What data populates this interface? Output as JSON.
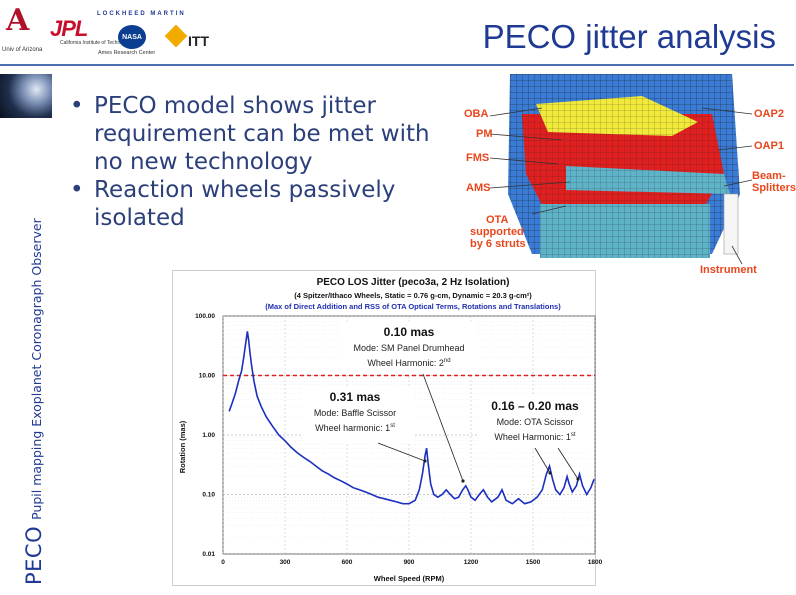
{
  "header": {
    "logos": {
      "ua_mark": "A",
      "ua_text": "Univ of Arizona",
      "jpl": "JPL",
      "jpl_sub": "California Institute of Technology",
      "lm": "LOCKHEED MARTIN",
      "nasa": "NASA",
      "ames": "Ames Research Center",
      "itt": "ITT"
    },
    "title": "PECO jitter analysis"
  },
  "sidebar": {
    "big": "PECO",
    "small": "Pupil mapping Exoplanet Coronagraph Observer"
  },
  "bullets": [
    "PECO model shows jitter requirement can be met with no new technology",
    "Reaction wheels passively isolated"
  ],
  "telescope": {
    "labels": {
      "oba": "OBA",
      "pm": "PM",
      "fms": "FMS",
      "ams": "AMS",
      "ota": "OTA",
      "ota2": "supported",
      "ota3": "by 6 struts",
      "oap2": "OAP2",
      "oap1": "OAP1",
      "beam": "Beam-",
      "beam2": "Splitters",
      "instrument": "Instrument"
    },
    "colors": {
      "label": "#e8461c",
      "red": "#e02020",
      "yellow": "#f2ea3a",
      "blue": "#3a7bd5",
      "teal": "#5fb3c9"
    }
  },
  "chart_data": {
    "type": "line",
    "title": "PECO LOS Jitter (peco3a, 2 Hz Isolation)",
    "subtitle1": "(4 Spitzer/Ithaco Wheels, Static = 0.76 g-cm, Dynamic = 20.3 g-cm²)",
    "subtitle2": "(Max of Direct Addition and RSS of OTA Optical Terms, Rotations and Translations)",
    "xlabel": "Wheel Speed (RPM)",
    "ylabel": "Rotation (mas)",
    "xlim": [
      0,
      1800
    ],
    "ylim": [
      0.01,
      100
    ],
    "yscale": "log",
    "x_ticks": [
      "0",
      "300",
      "600",
      "900",
      "1200",
      "1500",
      "1800"
    ],
    "y_ticks": [
      "100.00",
      "10.00",
      "1.00",
      "0.10",
      "0.01"
    ],
    "requirement_line": {
      "y": 10,
      "color": "#e02020"
    },
    "series": [
      {
        "color": "#1a2fbf",
        "points": [
          [
            30,
            2.5
          ],
          [
            45,
            3.5
          ],
          [
            60,
            5
          ],
          [
            75,
            8
          ],
          [
            90,
            12
          ],
          [
            100,
            20
          ],
          [
            110,
            35
          ],
          [
            118,
            55
          ],
          [
            124,
            40
          ],
          [
            130,
            25
          ],
          [
            138,
            15
          ],
          [
            150,
            8
          ],
          [
            165,
            4.5
          ],
          [
            185,
            3
          ],
          [
            210,
            2.0
          ],
          [
            240,
            1.4
          ],
          [
            270,
            1.0
          ],
          [
            300,
            0.8
          ],
          [
            330,
            0.62
          ],
          [
            360,
            0.5
          ],
          [
            390,
            0.42
          ],
          [
            420,
            0.36
          ],
          [
            450,
            0.3
          ],
          [
            480,
            0.25
          ],
          [
            510,
            0.22
          ],
          [
            540,
            0.19
          ],
          [
            570,
            0.17
          ],
          [
            600,
            0.15
          ],
          [
            630,
            0.13
          ],
          [
            660,
            0.12
          ],
          [
            690,
            0.11
          ],
          [
            720,
            0.1
          ],
          [
            750,
            0.09
          ],
          [
            780,
            0.085
          ],
          [
            810,
            0.08
          ],
          [
            840,
            0.075
          ],
          [
            870,
            0.07
          ],
          [
            900,
            0.07
          ],
          [
            930,
            0.08
          ],
          [
            950,
            0.12
          ],
          [
            965,
            0.22
          ],
          [
            978,
            0.45
          ],
          [
            985,
            0.6
          ],
          [
            992,
            0.35
          ],
          [
            1005,
            0.15
          ],
          [
            1020,
            0.1
          ],
          [
            1040,
            0.09
          ],
          [
            1060,
            0.1
          ],
          [
            1080,
            0.12
          ],
          [
            1100,
            0.1
          ],
          [
            1120,
            0.085
          ],
          [
            1140,
            0.09
          ],
          [
            1160,
            0.12
          ],
          [
            1175,
            0.14
          ],
          [
            1185,
            0.12
          ],
          [
            1200,
            0.09
          ],
          [
            1220,
            0.08
          ],
          [
            1240,
            0.1
          ],
          [
            1260,
            0.12
          ],
          [
            1280,
            0.09
          ],
          [
            1300,
            0.075
          ],
          [
            1330,
            0.09
          ],
          [
            1350,
            0.12
          ],
          [
            1370,
            0.08
          ],
          [
            1400,
            0.07
          ],
          [
            1430,
            0.085
          ],
          [
            1460,
            0.07
          ],
          [
            1490,
            0.075
          ],
          [
            1520,
            0.09
          ],
          [
            1545,
            0.12
          ],
          [
            1565,
            0.22
          ],
          [
            1580,
            0.3
          ],
          [
            1595,
            0.18
          ],
          [
            1610,
            0.12
          ],
          [
            1630,
            0.1
          ],
          [
            1650,
            0.13
          ],
          [
            1665,
            0.2
          ],
          [
            1675,
            0.15
          ],
          [
            1690,
            0.11
          ],
          [
            1710,
            0.14
          ],
          [
            1725,
            0.22
          ],
          [
            1740,
            0.14
          ],
          [
            1760,
            0.1
          ],
          [
            1780,
            0.13
          ],
          [
            1795,
            0.18
          ]
        ]
      }
    ],
    "annotations": [
      {
        "value": "0.10 mas",
        "mode": "Mode: SM Panel Drumhead",
        "harmonic": "Wheel Harmonic: 2",
        "sup": "nd"
      },
      {
        "value": "0.31 mas",
        "mode": "Mode: Baffle Scissor",
        "harmonic": "Wheel harmonic: 1",
        "sup": "st"
      },
      {
        "value": "0.16 – 0.20 mas",
        "mode": "Mode: OTA Scissor",
        "harmonic": "Wheel Harmonic: 1",
        "sup": "st"
      }
    ]
  }
}
